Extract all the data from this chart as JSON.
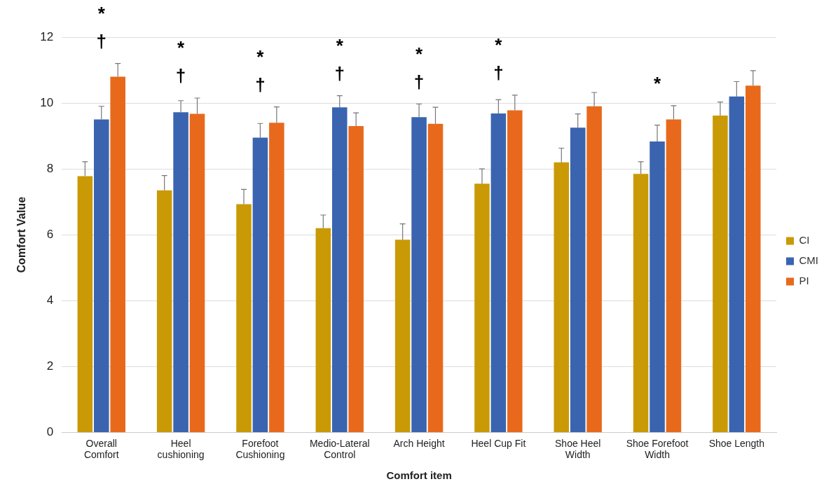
{
  "chart_data": {
    "type": "bar",
    "xlabel": "Comfort item",
    "ylabel": "Comfort Value",
    "categories": [
      "Overall Comfort",
      "Heel cushioning",
      "Forefoot Cushioning",
      "Medio-Lateral Control",
      "Arch Height",
      "Heel Cup Fit",
      "Shoe Heel Width",
      "Shoe Forefoot Width",
      "Shoe Length"
    ],
    "series": [
      {
        "name": "CI",
        "color": "#c99a06",
        "values": [
          7.78,
          7.35,
          6.93,
          6.2,
          5.85,
          7.55,
          8.2,
          7.85,
          9.62
        ],
        "errors": [
          [
            7.78,
            8.22
          ],
          [
            7.35,
            7.8
          ],
          [
            6.93,
            7.38
          ],
          [
            6.2,
            6.6
          ],
          [
            5.85,
            6.33
          ],
          [
            7.55,
            8.0
          ],
          [
            8.2,
            8.63
          ],
          [
            7.85,
            8.22
          ],
          [
            9.62,
            10.03
          ]
        ]
      },
      {
        "name": "CMI",
        "color": "#3a64b0",
        "values": [
          9.5,
          9.72,
          8.95,
          9.87,
          9.57,
          9.68,
          9.25,
          8.83,
          10.2
        ],
        "errors": [
          [
            9.5,
            9.9
          ],
          [
            9.72,
            10.07
          ],
          [
            8.95,
            9.38
          ],
          [
            9.87,
            10.22
          ],
          [
            9.57,
            9.97
          ],
          [
            9.68,
            10.1
          ],
          [
            9.25,
            9.67
          ],
          [
            8.83,
            9.33
          ],
          [
            10.2,
            10.65
          ]
        ]
      },
      {
        "name": "PI",
        "color": "#e8691c",
        "values": [
          10.8,
          9.67,
          9.4,
          9.3,
          9.37,
          9.78,
          9.9,
          9.5,
          10.53
        ],
        "errors": [
          [
            10.8,
            11.2
          ],
          [
            9.67,
            10.15
          ],
          [
            9.4,
            9.88
          ],
          [
            9.3,
            9.7
          ],
          [
            9.37,
            9.87
          ],
          [
            9.78,
            10.24
          ],
          [
            9.9,
            10.32
          ],
          [
            9.5,
            9.92
          ],
          [
            10.53,
            10.98
          ]
        ]
      }
    ],
    "ylim": [
      0,
      12
    ],
    "yticks": [
      0,
      2,
      4,
      6,
      8,
      10,
      12
    ],
    "grid": "y",
    "legend": "right",
    "annotations": [
      "*",
      "†",
      "*",
      "†",
      "*",
      "†",
      "*",
      "†",
      "*",
      "†",
      "*",
      "†",
      "*"
    ]
  }
}
